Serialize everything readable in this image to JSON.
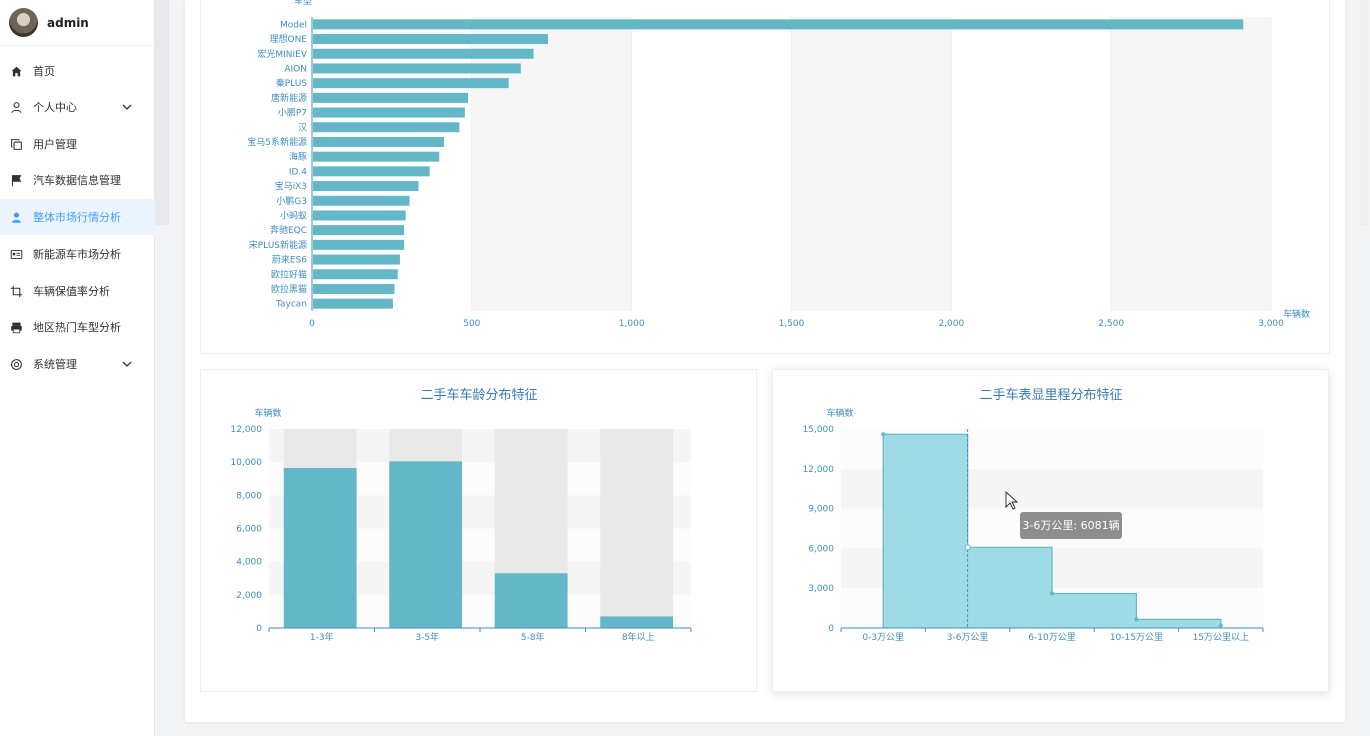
{
  "sidebar": {
    "username": "admin",
    "items": [
      {
        "label": "首页",
        "icon": "home-icon"
      },
      {
        "label": "个人中心",
        "icon": "user-icon"
      },
      {
        "label": "用户管理",
        "icon": "copy-icon"
      },
      {
        "label": "汽车数据信息管理",
        "icon": "flag-icon"
      },
      {
        "label": "整体市场行情分析",
        "icon": "person-icon"
      },
      {
        "label": "新能源车市场分析",
        "icon": "id-card-icon"
      },
      {
        "label": "车辆保值率分析",
        "icon": "crop-icon"
      },
      {
        "label": "地区热门车型分析",
        "icon": "printer-icon"
      },
      {
        "label": "系统管理",
        "icon": "support-icon"
      }
    ]
  },
  "colors": {
    "bar": "#63b7c6",
    "axis": "#3f8fc0",
    "title": "#3a7ab8",
    "active": "#409eff",
    "area": "#9fdbe4"
  },
  "charts": {
    "top": {
      "y_axis_name": "车型",
      "x_axis_name": "车辆数",
      "xlim": [
        0,
        3000
      ],
      "x_ticks": [
        "0",
        "500",
        "1,000",
        "1,500",
        "2,000",
        "2,500",
        "3,000"
      ]
    },
    "age": {
      "title": "二手车车龄分布特征",
      "y_axis_name": "车辆数",
      "y_ticks": [
        "0",
        "2,000",
        "4,000",
        "6,000",
        "8,000",
        "10,000",
        "12,000"
      ]
    },
    "mileage": {
      "title": "二手车表显里程分布特征",
      "y_axis_name": "车辆数",
      "y_ticks": [
        "0",
        "3,000",
        "6,000",
        "9,000",
        "12,000",
        "15,000"
      ],
      "tooltip": "3-6万公里: 6081辆"
    }
  },
  "chart_data": [
    {
      "type": "bar",
      "orientation": "horizontal",
      "categories": [
        "Model",
        "理想ONE",
        "宏光MINIEV",
        "AION",
        "秦PLUS",
        "唐新能源",
        "小鹏P7",
        "汉",
        "宝马5系新能源",
        "海豚",
        "ID.4",
        "宝马iX3",
        "小鹏G3",
        "小蚂蚁",
        "奔驰EQC",
        "宋PLUS新能源",
        "蔚来ES6",
        "欧拉好猫",
        "欧拉黑猫",
        "Taycan"
      ],
      "values": [
        2910,
        735,
        690,
        650,
        612,
        485,
        475,
        458,
        410,
        395,
        365,
        330,
        302,
        290,
        285,
        285,
        272,
        265,
        255,
        250
      ],
      "xlabel": "车辆数",
      "ylabel": "车型",
      "xlim": [
        0,
        3000
      ]
    },
    {
      "type": "bar",
      "categories": [
        "1-3年",
        "3-5年",
        "5-8年",
        "8年以上"
      ],
      "values": [
        9650,
        10050,
        3300,
        700
      ],
      "title": "二手车车龄分布特征",
      "ylabel": "车辆数",
      "ylim": [
        0,
        12000
      ]
    },
    {
      "type": "area",
      "categories": [
        "0-3万公里",
        "3-6万公里",
        "6-10万公里",
        "10-15万公里",
        "15万公里以上"
      ],
      "values": [
        14600,
        6081,
        2600,
        650,
        200
      ],
      "title": "二手车表显里程分布特征",
      "ylabel": "车辆数",
      "ylim": [
        0,
        15000
      ]
    }
  ]
}
